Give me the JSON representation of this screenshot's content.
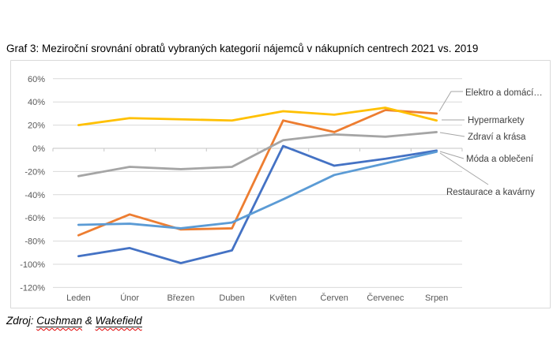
{
  "page": {
    "title": "Graf 3: Meziroční srovnání obratů vybraných kategorií nájemců v nákupních centrech 2021 vs. 2019"
  },
  "source": {
    "prefix": "Zdroj:",
    "word1": "Cushman",
    "separator": "&",
    "word2": "Wakefield"
  },
  "colors": {
    "grid": "#d9d9d9",
    "zero_axis": "#c6c6c6",
    "axis_text": "#595959",
    "data_label_text": "#404040",
    "leader_line": "#a6a6a6",
    "frame_border": "#d9d9d9"
  },
  "chart_data": {
    "type": "line",
    "title": "Graf 3: Meziroční srovnání obratů vybraných kategorií nájemců v nákupních centrech 2021 vs. 2019",
    "categories": [
      "Leden",
      "Únor",
      "Březen",
      "Duben",
      "Květen",
      "Červen",
      "Červenec",
      "Srpen"
    ],
    "ylim": [
      -120,
      60
    ],
    "ytick_values": [
      60,
      40,
      20,
      0,
      -20,
      -40,
      -60,
      -80,
      -100,
      -120
    ],
    "ytick_labels": [
      "60%",
      "40%",
      "20%",
      "0%",
      "-20%",
      "-40%",
      "-60%",
      "-80%",
      "-100%",
      "-120%"
    ],
    "grid": true,
    "legend_position": "right-end-labels",
    "series": [
      {
        "id": "moda",
        "label": "Móda a oblečení",
        "color": "#4472c4",
        "values": [
          -93,
          -86,
          -99,
          -88,
          2,
          -15,
          -9,
          -2
        ]
      },
      {
        "id": "elektro",
        "label": "Elektro a domácí…",
        "color": "#ed7d31",
        "values": [
          -75,
          -57,
          -70,
          -69,
          24,
          14,
          33,
          30
        ]
      },
      {
        "id": "zdravi",
        "label": "Zdraví a krása",
        "color": "#a5a5a5",
        "values": [
          -24,
          -16,
          -18,
          -16,
          7,
          12,
          10,
          14
        ]
      },
      {
        "id": "hypermarkety",
        "label": "Hypermarkety",
        "color": "#ffc000",
        "values": [
          20,
          26,
          25,
          24,
          32,
          29,
          35,
          24
        ]
      },
      {
        "id": "restaurace",
        "label": "Restaurace a kavárny",
        "color": "#5b9bd5",
        "values": [
          -66,
          -65,
          -69,
          -64,
          -44,
          -23,
          -13,
          -3
        ]
      }
    ]
  }
}
